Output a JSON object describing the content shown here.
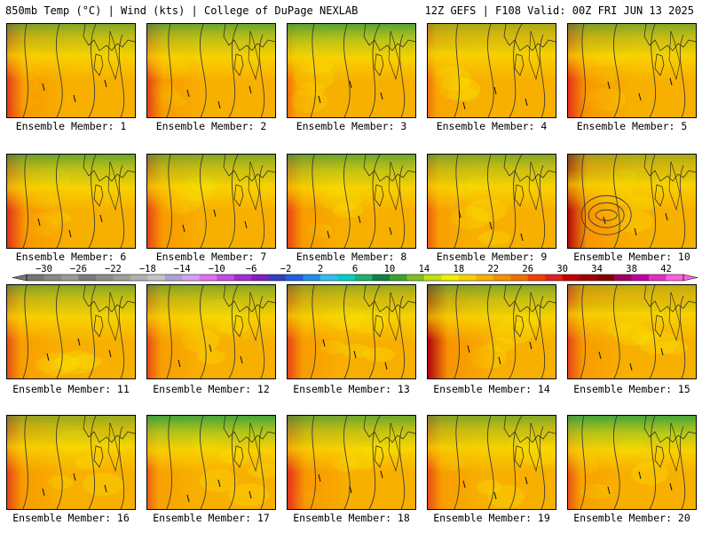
{
  "header": {
    "left": "850mb Temp (°C) | Wind (kts) | College of DuPage NEXLAB",
    "right": "12Z GEFS | F108 Valid: 00Z FRI JUN 13 2025"
  },
  "members": [
    {
      "label": "Ensemble Member: 1",
      "number": 1,
      "west_heat": 0.7,
      "north_cool": 0.6,
      "lows": []
    },
    {
      "label": "Ensemble Member: 2",
      "number": 2,
      "west_heat": 0.6,
      "north_cool": 0.7,
      "lows": []
    },
    {
      "label": "Ensemble Member: 3",
      "number": 3,
      "west_heat": 0.1,
      "north_cool": 0.8,
      "lows": []
    },
    {
      "label": "Ensemble Member: 4",
      "number": 4,
      "west_heat": 0.1,
      "north_cool": 0.4,
      "lows": []
    },
    {
      "label": "Ensemble Member: 5",
      "number": 5,
      "west_heat": 0.8,
      "north_cool": 0.6,
      "lows": []
    },
    {
      "label": "Ensemble Member: 6",
      "number": 6,
      "west_heat": 0.8,
      "north_cool": 0.7,
      "lows": []
    },
    {
      "label": "Ensemble Member: 7",
      "number": 7,
      "west_heat": 0.6,
      "north_cool": 0.6,
      "lows": []
    },
    {
      "label": "Ensemble Member: 8",
      "number": 8,
      "west_heat": 0.6,
      "north_cool": 0.7,
      "lows": []
    },
    {
      "label": "Ensemble Member: 9",
      "number": 9,
      "west_heat": 0.3,
      "north_cool": 0.6,
      "lows": []
    },
    {
      "label": "Ensemble Member: 10",
      "number": 10,
      "west_heat": 0.9,
      "north_cool": 0.4,
      "lows": [
        [
          0.3,
          0.65
        ]
      ]
    },
    {
      "label": "Ensemble Member: 11",
      "number": 11,
      "west_heat": 0.5,
      "north_cool": 0.6,
      "lows": []
    },
    {
      "label": "Ensemble Member: 12",
      "number": 12,
      "west_heat": 0.5,
      "north_cool": 0.6,
      "lows": []
    },
    {
      "label": "Ensemble Member: 13",
      "number": 13,
      "west_heat": 0.6,
      "north_cool": 0.5,
      "lows": []
    },
    {
      "label": "Ensemble Member: 14",
      "number": 14,
      "west_heat": 1.0,
      "north_cool": 0.6,
      "lows": []
    },
    {
      "label": "Ensemble Member: 15",
      "number": 15,
      "west_heat": 0.6,
      "north_cool": 0.3,
      "lows": []
    },
    {
      "label": "Ensemble Member: 16",
      "number": 16,
      "west_heat": 0.6,
      "north_cool": 0.5,
      "lows": []
    },
    {
      "label": "Ensemble Member: 17",
      "number": 17,
      "west_heat": 0.3,
      "north_cool": 0.9,
      "lows": []
    },
    {
      "label": "Ensemble Member: 18",
      "number": 18,
      "west_heat": 0.8,
      "north_cool": 0.7,
      "lows": []
    },
    {
      "label": "Ensemble Member: 19",
      "number": 19,
      "west_heat": 0.5,
      "north_cool": 0.6,
      "lows": []
    },
    {
      "label": "Ensemble Member: 20",
      "number": 20,
      "west_heat": 0.4,
      "north_cool": 0.9,
      "lows": []
    }
  ],
  "colorbar": {
    "ticks": [
      -30,
      -26,
      -22,
      -18,
      -14,
      -10,
      -6,
      -2,
      2,
      6,
      10,
      14,
      18,
      22,
      26,
      30,
      34,
      38,
      42
    ],
    "min": -32,
    "max": 44,
    "step": 2,
    "colors": [
      "#767676",
      "#888888",
      "#9a9a9a",
      "#7a7a7a",
      "#8c8c8c",
      "#9e9e9e",
      "#b0b0b0",
      "#c4c4c4",
      "#b0a0d0",
      "#d4a0f0",
      "#e070f0",
      "#c050e0",
      "#a030d0",
      "#8020c0",
      "#3040c0",
      "#2060e0",
      "#2090f0",
      "#30c0f0",
      "#00d0c0",
      "#20b070",
      "#108040",
      "#40a030",
      "#80c020",
      "#c0e010",
      "#f0f000",
      "#f8d000",
      "#f8b000",
      "#f89000",
      "#f07000",
      "#f04000",
      "#e02020",
      "#c00000",
      "#a00000",
      "#800000",
      "#a00060",
      "#c000a0",
      "#e030c0",
      "#ff60e0"
    ]
  },
  "palette": {
    "north_cool": "#30a040",
    "cool_mid": "#a0d020",
    "warm_yellow": "#f8e000",
    "warm_base": "#f8b000",
    "warm_orange": "#f89000",
    "hot_red": "#e02020",
    "very_hot": "#b00010"
  }
}
